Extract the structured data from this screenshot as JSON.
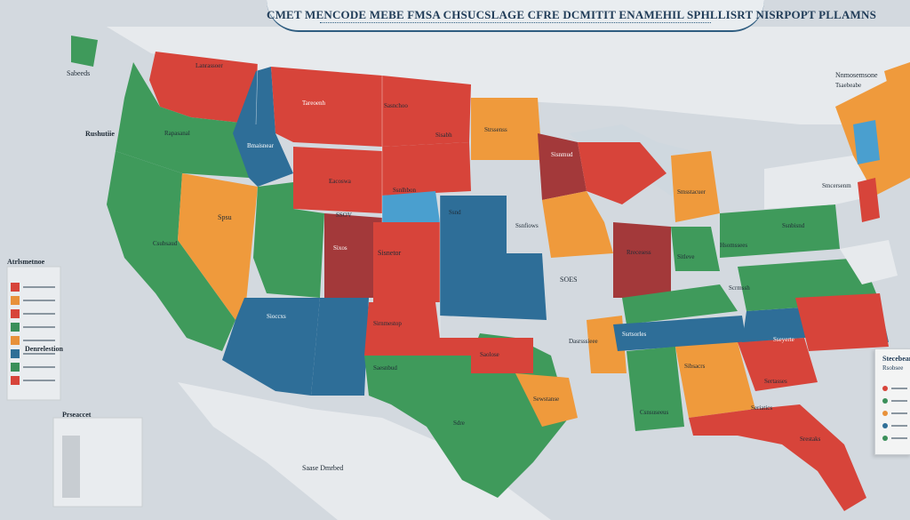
{
  "title": "CMET MENCODE MEBE FMSA CHSUCSLAGE CFRE DCMITIT ENAMEHIL SPHLLISRT NISRPOPT PLLAMNS",
  "map_labels": {
    "pacific_label": "Sabeeds",
    "west_coast_label": "Rushutiie",
    "ne_label": "Nnmosemsone",
    "ne_label2": "Tsaebeabe",
    "legend_left_title": "Atrlsmetnoe",
    "legend_left_2": "Denrelestion",
    "legend_bottom": "Prseaccet",
    "mexico_label": "Saase Dmrbed",
    "state_oregon": "Rapasanal",
    "state_idaho": "Bmaisnear",
    "state_montana": "Tareoenh",
    "state_nd": "Sasnchoo",
    "state_wyoming": "Eacoswa",
    "state_utah": "SSOV",
    "state_nevada": "Spsu",
    "state_calif": "Csubsaud",
    "state_colorado": "Sixos",
    "state_kansas": "Sisnetor",
    "state_oklahoma": "Sirnmestop",
    "state_texas": "Sdre",
    "state_nebraska": "Ssnlhbon",
    "state_iowa": "Ssnd",
    "state_missouri": "SOES",
    "state_illinois": "Ssnfiows",
    "state_indiana": "Rrecesess",
    "state_ohio": "Sitleve",
    "state_kentucky": "Hsomssees",
    "state_georgia": "Sibsacrs",
    "state_florida": "Srestaks",
    "state_michigan": "Smsstacuer",
    "state_ny": "Ssnbisnd",
    "state_ga_label": "Seriatics",
    "state_alabama": "Csnsuseeus",
    "state_miss": "Dasrsssieee",
    "state_arkansas": "Saolose",
    "state_nm": "Saesnbud",
    "state_arizona": "Sioccxs",
    "state_sd": "Sisabh",
    "state_mn": "Strssenss",
    "state_wi": "Sisnmud",
    "state_wa": "Lanrassoer",
    "state_la": "Sewstanse",
    "state_nc": "Sseyerte",
    "state_sc": "Sertasses",
    "state_tn": "Ssrtsorles",
    "state_va": "Scrmssh",
    "state_me": "Smcersenm"
  },
  "legend_right": {
    "title": "Stecebeanet",
    "subtitle": "Rsobsee",
    "items": [
      {
        "color": "#d7443a"
      },
      {
        "color": "#3a8f5a"
      },
      {
        "color": "#e8913a"
      },
      {
        "color": "#2f6f97"
      },
      {
        "color": "#3a8f5a"
      }
    ]
  },
  "legend_left_swatches": [
    "#d7443a",
    "#e8913a",
    "#d7443a",
    "#3a8f5a",
    "#e8913a",
    "#2f6f97",
    "#3a8f5a",
    "#d7443a"
  ],
  "colors": {
    "red": "#d7443a",
    "dark_red": "#a3393a",
    "green": "#3f9a5b",
    "orange": "#ef9a3c",
    "blue": "#2e6e98",
    "light_blue": "#4a9fcf",
    "ocean": "#d3d9df",
    "land_outer": "#e4e7ea"
  }
}
